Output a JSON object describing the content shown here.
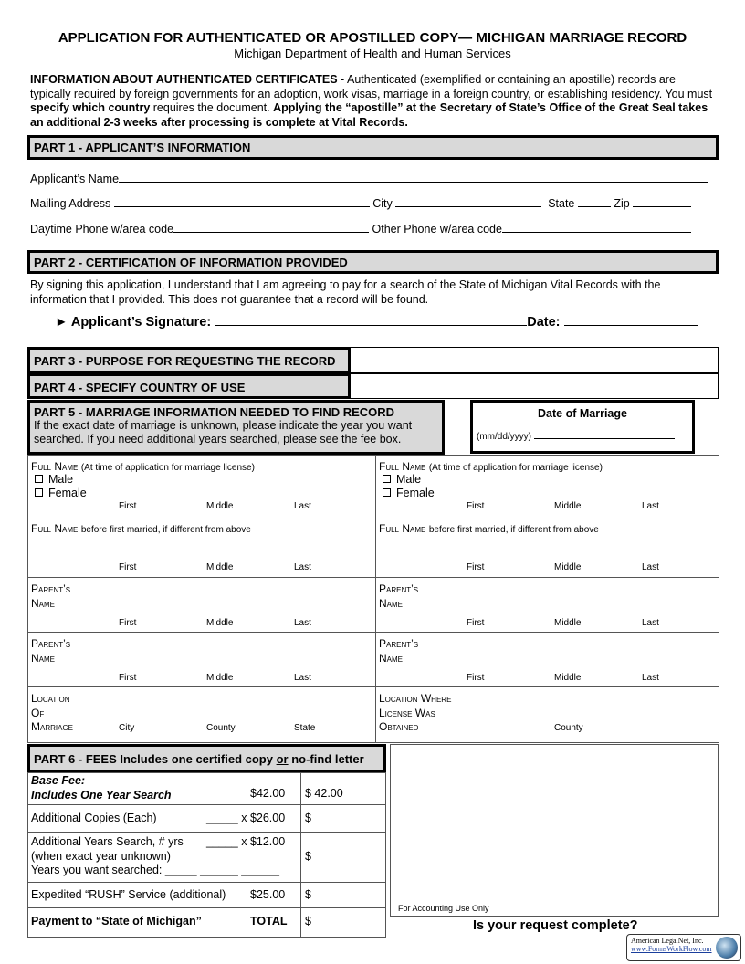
{
  "header": {
    "title": "APPLICATION FOR AUTHENTICATED OR APOSTILLED COPY— MICHIGAN MARRIAGE RECORD",
    "subtitle": "Michigan Department of Health and Human Services"
  },
  "info": {
    "heading": "INFORMATION ABOUT AUTHENTICATED CERTIFICATES",
    "t1": " -  Authenticated (exemplified or containing an apostille) records are typically required by foreign governments for an adoption, work visas, marriage in a foreign country, or establishing residency.  You must ",
    "b1": "specify which country",
    "t2": " requires the document.  ",
    "b2": "Applying the “apostille” at the Secretary of State’s Office of the Great Seal takes an additional 2-3 weeks after processing is complete at Vital Records."
  },
  "part1": {
    "title": "PART 1 - APPLICANT’S INFORMATION",
    "name": "Applicant’s Name",
    "mailing": "Mailing Address",
    "city": "City",
    "state": "State",
    "zip": "Zip",
    "day_phone": "Daytime Phone w/area code",
    "other_phone": "Other Phone w/area code"
  },
  "part2": {
    "title": "PART 2 - CERTIFICATION OF INFORMATION PROVIDED",
    "text": "By signing this application, I understand that I am agreeing to pay for a search of the State of Michigan Vital Records with the information that I provided. This does not guarantee that a record will be found.",
    "signature": "► Applicant’s Signature:",
    "date": "Date:"
  },
  "part3": {
    "title": "PART 3 - PURPOSE FOR REQUESTING THE RECORD"
  },
  "part4": {
    "title": "PART 4 - SPECIFY COUNTRY OF USE"
  },
  "part5": {
    "title": "PART 5 - MARRIAGE INFORMATION NEEDED TO FIND RECORD",
    "text1": "If the exact date of marriage is unknown, please indicate the year you want",
    "text2": "searched. If you need additional years searched, please see the fee box.",
    "date_title": "Date of Marriage",
    "date_format": "(mm/dd/yyyy)"
  },
  "table": {
    "full_name": "Full Name",
    "full_name_note": "(At time of application for marriage license)",
    "male": "Male",
    "female": "Female",
    "first": "First",
    "middle": "Middle",
    "last": "Last",
    "before": "Full Name",
    "before_note": "before first married, if different from above",
    "parents1": "Parent’s",
    "parents2": "Name",
    "loc1": "Location",
    "loc2": "Of",
    "loc3": "Marriage",
    "city": "City",
    "county": "County",
    "state": "State",
    "lic1": "Location Where",
    "lic2": "License Was",
    "lic3": "Obtained"
  },
  "part6": {
    "title_a": "PART 6 - FEES  Includes one certified copy ",
    "title_or": "or",
    "title_b": " no-find letter",
    "base1": "Base Fee:",
    "base2": "Includes One Year Search",
    "base_price": "$42.00",
    "base_total": "$  42.00",
    "copies": "Additional Copies (Each)",
    "copies_price": "_____ x $26.00",
    "years1": "Additional Years Search, # yrs",
    "years_price": "_____ x $12.00",
    "years2": "(when exact year unknown)",
    "years3": "Years you want searched:  _____  ______  ______",
    "rush": "Expedited “RUSH” Service (additional)",
    "rush_price": "$25.00",
    "payment": "Payment to “State of Michigan”",
    "total": "TOTAL",
    "dollar": "$"
  },
  "accounting": "For Accounting Use Only",
  "complete": "Is your request complete?",
  "logo": {
    "l1": "American LegalNet, Inc.",
    "l2": "www.FormsWorkFlow.com"
  }
}
